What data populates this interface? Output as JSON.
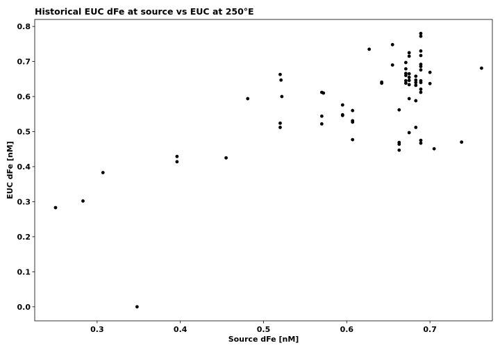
{
  "chart_data": {
    "type": "scatter",
    "title": "Historical EUC dFe at source vs EUC at 250°E",
    "xlabel": "Source dFe [nM]",
    "ylabel": "EUC dFe [nM]",
    "xlim": [
      0.225,
      0.775
    ],
    "ylim": [
      -0.04,
      0.82
    ],
    "xticks": [
      "0.3",
      "0.4",
      "0.5",
      "0.6",
      "0.7"
    ],
    "xtick_values": [
      0.3,
      0.4,
      0.5,
      0.6,
      0.7
    ],
    "yticks": [
      "0.0",
      "0.1",
      "0.2",
      "0.3",
      "0.4",
      "0.5",
      "0.6",
      "0.7",
      "0.8"
    ],
    "ytick_values": [
      0.0,
      0.1,
      0.2,
      0.3,
      0.4,
      0.5,
      0.6,
      0.7,
      0.8
    ],
    "grid": false,
    "marker_color": "#000000",
    "series": [
      {
        "points": [
          [
            0.25,
            0.283
          ],
          [
            0.283,
            0.302
          ],
          [
            0.307,
            0.383
          ],
          [
            0.348,
            0.0
          ],
          [
            0.396,
            0.429
          ],
          [
            0.396,
            0.414
          ],
          [
            0.455,
            0.425
          ],
          [
            0.481,
            0.594
          ],
          [
            0.52,
            0.663
          ],
          [
            0.521,
            0.647
          ],
          [
            0.522,
            0.6
          ],
          [
            0.52,
            0.524
          ],
          [
            0.52,
            0.512
          ],
          [
            0.57,
            0.612
          ],
          [
            0.572,
            0.61
          ],
          [
            0.57,
            0.544
          ],
          [
            0.57,
            0.522
          ],
          [
            0.595,
            0.576
          ],
          [
            0.595,
            0.548
          ],
          [
            0.595,
            0.546
          ],
          [
            0.607,
            0.56
          ],
          [
            0.607,
            0.531
          ],
          [
            0.607,
            0.527
          ],
          [
            0.607,
            0.477
          ],
          [
            0.627,
            0.735
          ],
          [
            0.642,
            0.641
          ],
          [
            0.642,
            0.638
          ],
          [
            0.655,
            0.748
          ],
          [
            0.655,
            0.69
          ],
          [
            0.663,
            0.562
          ],
          [
            0.663,
            0.469
          ],
          [
            0.663,
            0.464
          ],
          [
            0.663,
            0.447
          ],
          [
            0.671,
            0.697
          ],
          [
            0.671,
            0.679
          ],
          [
            0.671,
            0.666
          ],
          [
            0.671,
            0.66
          ],
          [
            0.671,
            0.645
          ],
          [
            0.671,
            0.638
          ],
          [
            0.675,
            0.725
          ],
          [
            0.675,
            0.715
          ],
          [
            0.675,
            0.665
          ],
          [
            0.675,
            0.655
          ],
          [
            0.675,
            0.646
          ],
          [
            0.675,
            0.634
          ],
          [
            0.675,
            0.594
          ],
          [
            0.675,
            0.497
          ],
          [
            0.683,
            0.658
          ],
          [
            0.683,
            0.647
          ],
          [
            0.683,
            0.64
          ],
          [
            0.683,
            0.632
          ],
          [
            0.683,
            0.588
          ],
          [
            0.683,
            0.512
          ],
          [
            0.689,
            0.78
          ],
          [
            0.689,
            0.772
          ],
          [
            0.689,
            0.73
          ],
          [
            0.689,
            0.717
          ],
          [
            0.689,
            0.692
          ],
          [
            0.689,
            0.686
          ],
          [
            0.689,
            0.676
          ],
          [
            0.689,
            0.645
          ],
          [
            0.689,
            0.64
          ],
          [
            0.689,
            0.621
          ],
          [
            0.689,
            0.612
          ],
          [
            0.689,
            0.475
          ],
          [
            0.689,
            0.467
          ],
          [
            0.7,
            0.669
          ],
          [
            0.7,
            0.637
          ],
          [
            0.705,
            0.451
          ],
          [
            0.738,
            0.47
          ],
          [
            0.762,
            0.681
          ]
        ]
      }
    ]
  }
}
